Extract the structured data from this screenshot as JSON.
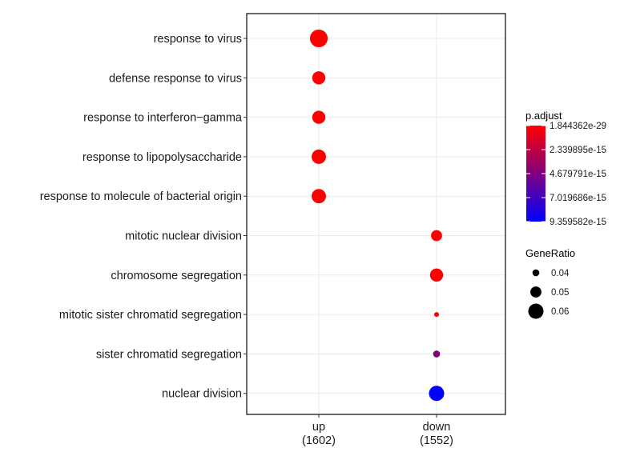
{
  "chart_data": {
    "type": "scatter",
    "title": "",
    "xlabel": "",
    "ylabel": "",
    "x_categories": [
      {
        "label": "up",
        "sub": "(1602)"
      },
      {
        "label": "down",
        "sub": "(1552)"
      }
    ],
    "y_categories": [
      "response to virus",
      "defense response to virus",
      "response to interferon−gamma",
      "response to lipopolysaccharide",
      "response to molecule of bacterial origin",
      "mitotic nuclear division",
      "chromosome segregation",
      "mitotic sister chromatid segregation",
      "sister chromatid segregation",
      "nuclear division"
    ],
    "points": [
      {
        "x": "up",
        "y": "response to virus",
        "gene_ratio": 0.066,
        "p_adjust": 1.844362e-29
      },
      {
        "x": "up",
        "y": "defense response to virus",
        "gene_ratio": 0.055,
        "p_adjust": 1e-25
      },
      {
        "x": "up",
        "y": "response to interferon−gamma",
        "gene_ratio": 0.055,
        "p_adjust": 1e-25
      },
      {
        "x": "up",
        "y": "response to lipopolysaccharide",
        "gene_ratio": 0.058,
        "p_adjust": 1e-24
      },
      {
        "x": "up",
        "y": "response to molecule of bacterial origin",
        "gene_ratio": 0.058,
        "p_adjust": 1e-24
      },
      {
        "x": "down",
        "y": "mitotic nuclear division",
        "gene_ratio": 0.05,
        "p_adjust": 1e-20
      },
      {
        "x": "down",
        "y": "chromosome segregation",
        "gene_ratio": 0.055,
        "p_adjust": 1e-20
      },
      {
        "x": "down",
        "y": "mitotic sister chromatid segregation",
        "gene_ratio": 0.035,
        "p_adjust": 1e-18
      },
      {
        "x": "down",
        "y": "sister chromatid segregation",
        "gene_ratio": 0.04,
        "p_adjust": 4.6e-15
      },
      {
        "x": "down",
        "y": "nuclear division",
        "gene_ratio": 0.06,
        "p_adjust": 9.359582e-15
      }
    ],
    "legend_color": {
      "title": "p.adjust",
      "min": 1.844362e-29,
      "max": 9.359582e-15,
      "low_color": "#ff0000",
      "high_color": "#0000ff",
      "ticks": [
        {
          "value": 1.844362e-29,
          "label": "1.844362e-29"
        },
        {
          "value": 2.339895e-15,
          "label": "2.339895e-15"
        },
        {
          "value": 4.679791e-15,
          "label": "4.679791e-15"
        },
        {
          "value": 7.019686e-15,
          "label": "7.019686e-15"
        },
        {
          "value": 9.359582e-15,
          "label": "9.359582e-15"
        }
      ]
    },
    "legend_size": {
      "title": "GeneRatio",
      "entries": [
        {
          "value": 0.04,
          "label": "0.04"
        },
        {
          "value": 0.05,
          "label": "0.05"
        },
        {
          "value": 0.06,
          "label": "0.06"
        }
      ]
    },
    "grid": true,
    "legend_position": "right"
  }
}
